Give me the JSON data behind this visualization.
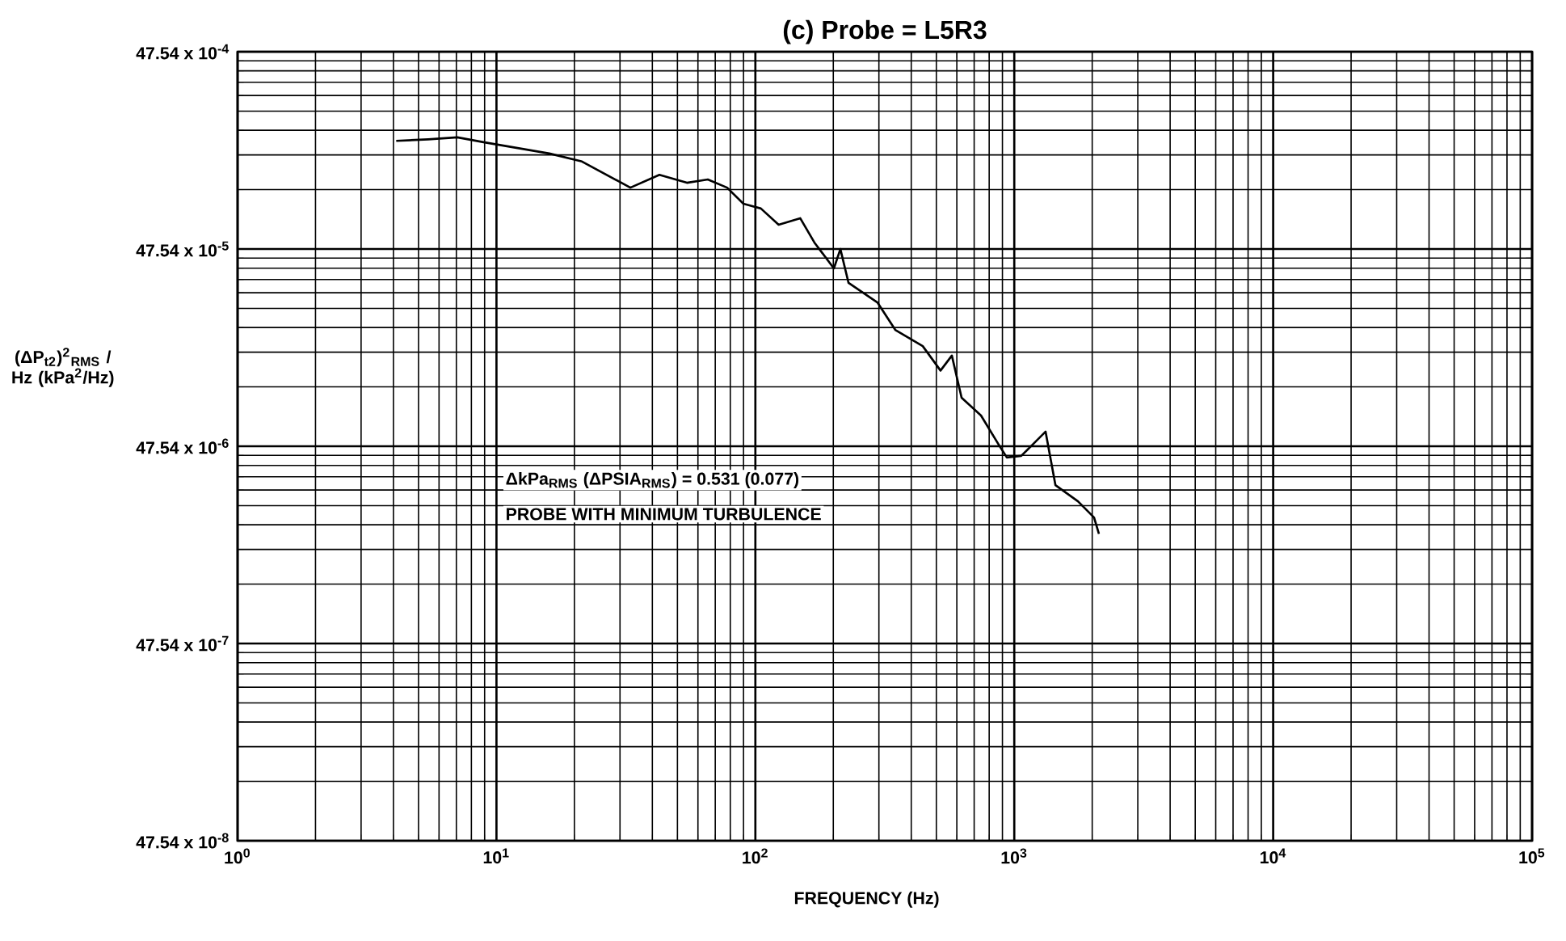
{
  "chart_data": {
    "type": "line",
    "title": "(c) Probe =  L5R3",
    "xlabel": "FREQUENCY (Hz)",
    "ylabel": "(ΔP$_{t2}$)$^{2}$$_{RMS}$ / Hz (kPa$^{2}$/Hz)",
    "annotations": [
      "ΔkPa$_{RMS}$ (ΔPSIA$_{RMS}$) = 0.531 (0.077)",
      "PROBE WITH MINIMUM TURBULENCE"
    ],
    "log": "xy",
    "grid": true,
    "legend": false,
    "marker": "none",
    "line_style": "solid",
    "xlim": [
      1,
      100000
    ],
    "ylim": [
      4.754e-07,
      0.004754
    ],
    "xticks": [
      {
        "value": 1,
        "label": "10$^{0}$"
      },
      {
        "value": 10,
        "label": "10$^{1}$"
      },
      {
        "value": 100,
        "label": "10$^{2}$"
      },
      {
        "value": 1000,
        "label": "10$^{3}$"
      },
      {
        "value": 10000,
        "label": "10$^{4}$"
      },
      {
        "value": 100000,
        "label": "10$^{5}$"
      }
    ],
    "yticks": [
      {
        "value": 4.754e-07,
        "label": "47.54 x 10$^{-8}$"
      },
      {
        "value": 4.754e-06,
        "label": "47.54 x 10$^{-7}$"
      },
      {
        "value": 4.754e-05,
        "label": "47.54 x 10$^{-6}$"
      },
      {
        "value": 0.0004754,
        "label": "47.54 x 10$^{-5}$"
      },
      {
        "value": 0.004754,
        "label": "47.54 x 10$^{-4}$"
      }
    ],
    "x": [
      4.1,
      5.45,
      7.06,
      9.0,
      16.0,
      21.4,
      32.9,
      42.6,
      54.4,
      65.5,
      77.8,
      89.9,
      105,
      123,
      149,
      169,
      201,
      213,
      229,
      296,
      347,
      443,
      519,
      574,
      626,
      744,
      871,
      936,
      1064,
      1321,
      1442,
      1762,
      2033,
      2123
    ],
    "series": [
      {
        "color": "#000000",
        "values": [
          0.00168,
          0.00171,
          0.00175,
          0.00165,
          0.00145,
          0.00132,
          0.000973,
          0.00113,
          0.00103,
          0.00107,
          0.000973,
          0.000807,
          0.000763,
          0.000631,
          0.000681,
          0.000513,
          0.000379,
          0.000475,
          0.00032,
          0.000255,
          0.000185,
          0.000153,
          0.000115,
          0.000137,
          8.38e-05,
          6.81e-05,
          4.84e-05,
          4.17e-05,
          4.25e-05,
          5.64e-05,
          3.02e-05,
          2.5e-05,
          2.07e-05,
          1.71e-05
        ]
      }
    ]
  }
}
